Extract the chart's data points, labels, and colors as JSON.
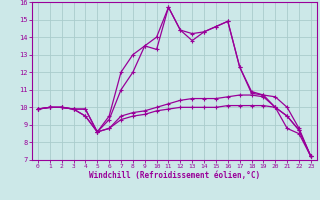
{
  "xlabel": "Windchill (Refroidissement éolien,°C)",
  "xlim": [
    -0.5,
    23.5
  ],
  "ylim": [
    7,
    16
  ],
  "xticks": [
    0,
    1,
    2,
    3,
    4,
    5,
    6,
    7,
    8,
    9,
    10,
    11,
    12,
    13,
    14,
    15,
    16,
    17,
    18,
    19,
    20,
    21,
    22,
    23
  ],
  "yticks": [
    7,
    8,
    9,
    10,
    11,
    12,
    13,
    14,
    15,
    16
  ],
  "bg_color": "#cce8e8",
  "line_color": "#990099",
  "grid_color": "#aacccc",
  "lines": [
    {
      "x": [
        0,
        1,
        2,
        3,
        4,
        5,
        6,
        7,
        8,
        9,
        10,
        11,
        12,
        13,
        14,
        15,
        16,
        17,
        18,
        19,
        20,
        21,
        22,
        23
      ],
      "y": [
        9.9,
        10.0,
        10.0,
        9.9,
        9.9,
        8.6,
        8.8,
        9.3,
        9.5,
        9.6,
        9.8,
        9.9,
        10.0,
        10.0,
        10.0,
        10.0,
        10.1,
        10.1,
        10.1,
        10.1,
        10.0,
        9.5,
        8.7,
        7.2
      ]
    },
    {
      "x": [
        0,
        1,
        2,
        3,
        4,
        5,
        6,
        7,
        8,
        9,
        10,
        11,
        12,
        13,
        14,
        15,
        16,
        17,
        18,
        19,
        20,
        21,
        22,
        23
      ],
      "y": [
        9.9,
        10.0,
        10.0,
        9.9,
        9.9,
        8.6,
        8.8,
        9.5,
        9.7,
        9.8,
        10.0,
        10.2,
        10.4,
        10.5,
        10.5,
        10.5,
        10.6,
        10.7,
        10.7,
        10.6,
        10.0,
        9.5,
        8.7,
        7.2
      ]
    },
    {
      "x": [
        0,
        1,
        2,
        3,
        4,
        5,
        6,
        7,
        8,
        9,
        10,
        11,
        12,
        13,
        14,
        15,
        16,
        17,
        18,
        19,
        20,
        21,
        22,
        23
      ],
      "y": [
        9.9,
        10.0,
        10.0,
        9.9,
        9.5,
        8.6,
        9.3,
        11.0,
        12.0,
        13.5,
        13.3,
        15.7,
        14.4,
        13.8,
        14.3,
        14.6,
        14.9,
        12.3,
        10.9,
        10.7,
        10.6,
        10.0,
        8.8,
        7.2
      ]
    },
    {
      "x": [
        0,
        1,
        2,
        3,
        4,
        5,
        6,
        7,
        8,
        9,
        10,
        11,
        12,
        13,
        14,
        15,
        16,
        17,
        18,
        19,
        20,
        21,
        22,
        23
      ],
      "y": [
        9.9,
        10.0,
        10.0,
        9.9,
        9.5,
        8.6,
        9.5,
        12.0,
        13.0,
        13.5,
        14.0,
        15.7,
        14.4,
        14.2,
        14.3,
        14.6,
        14.9,
        12.3,
        10.8,
        10.7,
        10.0,
        8.8,
        8.5,
        7.2
      ]
    }
  ]
}
